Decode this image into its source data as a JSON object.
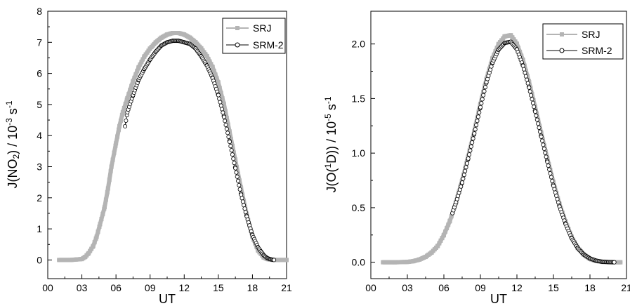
{
  "chart_data": [
    {
      "type": "line",
      "title": "",
      "xlabel": "UT",
      "ylabel_parts": [
        "J(NO",
        "2",
        ") / 10",
        "-3",
        " s",
        "-1"
      ],
      "xlim": [
        0,
        21
      ],
      "ylim": [
        -0.6,
        8
      ],
      "xticks": [
        0,
        3,
        6,
        9,
        12,
        15,
        18,
        21
      ],
      "xtick_labels": [
        "00",
        "03",
        "06",
        "09",
        "12",
        "15",
        "18",
        "21"
      ],
      "yticks": [
        0,
        1,
        2,
        3,
        4,
        5,
        6,
        7,
        8
      ],
      "ytick_labels": [
        "0",
        "1",
        "2",
        "3",
        "4",
        "5",
        "6",
        "7",
        "8"
      ],
      "legend_position": "top-right",
      "series": [
        {
          "name": "SRJ",
          "color": "#b4b4b4",
          "marker": "filled-square",
          "x": [
            1.0,
            2.0,
            3.0,
            3.3,
            3.6,
            4.0,
            4.3,
            4.6,
            5.0,
            5.3,
            5.6,
            6.0,
            6.3,
            6.6,
            7.0,
            7.5,
            8.0,
            8.5,
            9.0,
            9.5,
            10.0,
            10.5,
            11.0,
            11.5,
            12.0,
            12.5,
            13.0,
            13.5,
            14.0,
            14.5,
            15.0,
            15.5,
            16.0,
            16.5,
            17.0,
            17.5,
            18.0,
            18.5,
            19.0,
            19.3,
            19.6,
            20.0,
            20.5,
            21.0
          ],
          "y": [
            0.0,
            0.0,
            0.03,
            0.1,
            0.22,
            0.45,
            0.75,
            1.15,
            1.7,
            2.3,
            3.0,
            3.75,
            4.3,
            4.75,
            5.2,
            5.75,
            6.2,
            6.55,
            6.8,
            7.0,
            7.15,
            7.25,
            7.3,
            7.3,
            7.25,
            7.15,
            7.0,
            6.8,
            6.55,
            6.2,
            5.7,
            5.0,
            4.1,
            3.2,
            2.3,
            1.45,
            0.75,
            0.3,
            0.08,
            0.03,
            0.01,
            0.0,
            0.0,
            0.0
          ]
        },
        {
          "name": "SRM-2",
          "color": "#000000",
          "marker": "open-circle",
          "x": [
            6.8,
            7.0,
            7.5,
            8.0,
            8.5,
            9.0,
            9.5,
            10.0,
            10.5,
            11.0,
            11.5,
            12.0,
            12.5,
            13.0,
            13.5,
            14.0,
            14.5,
            15.0,
            15.5,
            16.0,
            16.5,
            17.0,
            17.5,
            18.0,
            18.5,
            19.0,
            19.3,
            19.6,
            19.9
          ],
          "y": [
            4.3,
            4.75,
            5.3,
            5.8,
            6.15,
            6.45,
            6.7,
            6.9,
            7.0,
            7.05,
            7.05,
            7.0,
            6.95,
            6.8,
            6.55,
            6.25,
            5.85,
            5.3,
            4.6,
            3.8,
            2.95,
            2.1,
            1.4,
            0.8,
            0.4,
            0.15,
            0.06,
            0.02,
            0.0
          ]
        }
      ]
    },
    {
      "type": "line",
      "title": "",
      "xlabel": "UT",
      "ylabel_parts": [
        "J(O(",
        "1",
        "D)) / 10",
        "-5",
        " s",
        "-1"
      ],
      "xlim": [
        0,
        21
      ],
      "ylim": [
        -0.15,
        2.3
      ],
      "xticks": [
        0,
        3,
        6,
        9,
        12,
        15,
        18,
        21
      ],
      "xtick_labels": [
        "00",
        "03",
        "06",
        "09",
        "12",
        "15",
        "18",
        "21"
      ],
      "yticks": [
        0.0,
        0.5,
        1.0,
        1.5,
        2.0
      ],
      "ytick_labels": [
        "0.0",
        "0.5",
        "1.0",
        "1.5",
        "2.0"
      ],
      "legend_position": "top-right",
      "series": [
        {
          "name": "SRJ",
          "color": "#b4b4b4",
          "marker": "filled-square",
          "x": [
            1.0,
            2.0,
            3.0,
            3.5,
            4.0,
            4.5,
            5.0,
            5.5,
            6.0,
            6.5,
            7.0,
            7.5,
            8.0,
            8.5,
            9.0,
            9.5,
            10.0,
            10.5,
            11.0,
            11.5,
            12.0,
            12.5,
            13.0,
            13.5,
            14.0,
            14.5,
            15.0,
            15.5,
            16.0,
            16.5,
            17.0,
            17.5,
            18.0,
            18.5,
            19.0,
            19.5,
            20.0,
            20.5
          ],
          "y": [
            0.0,
            0.0,
            0.003,
            0.01,
            0.025,
            0.05,
            0.09,
            0.15,
            0.25,
            0.38,
            0.55,
            0.75,
            0.97,
            1.2,
            1.45,
            1.68,
            1.87,
            2.0,
            2.07,
            2.08,
            2.0,
            1.85,
            1.65,
            1.42,
            1.18,
            0.95,
            0.73,
            0.53,
            0.37,
            0.23,
            0.13,
            0.07,
            0.03,
            0.012,
            0.004,
            0.001,
            0.0,
            0.0
          ],
          "color_note": ""
        },
        {
          "name": "SRM-2",
          "color": "#000000",
          "marker": "open-circle",
          "x": [
            6.7,
            7.0,
            7.5,
            8.0,
            8.5,
            9.0,
            9.5,
            10.0,
            10.5,
            11.0,
            11.5,
            12.0,
            12.5,
            13.0,
            13.5,
            14.0,
            14.5,
            15.0,
            15.5,
            16.0,
            16.5,
            17.0,
            17.5,
            18.0,
            18.5,
            19.0,
            19.5,
            20.0
          ],
          "y": [
            0.45,
            0.55,
            0.73,
            0.95,
            1.18,
            1.42,
            1.65,
            1.83,
            1.95,
            2.01,
            2.02,
            1.95,
            1.8,
            1.6,
            1.38,
            1.15,
            0.92,
            0.7,
            0.51,
            0.35,
            0.22,
            0.13,
            0.07,
            0.035,
            0.015,
            0.005,
            0.002,
            0.0
          ]
        }
      ]
    }
  ]
}
